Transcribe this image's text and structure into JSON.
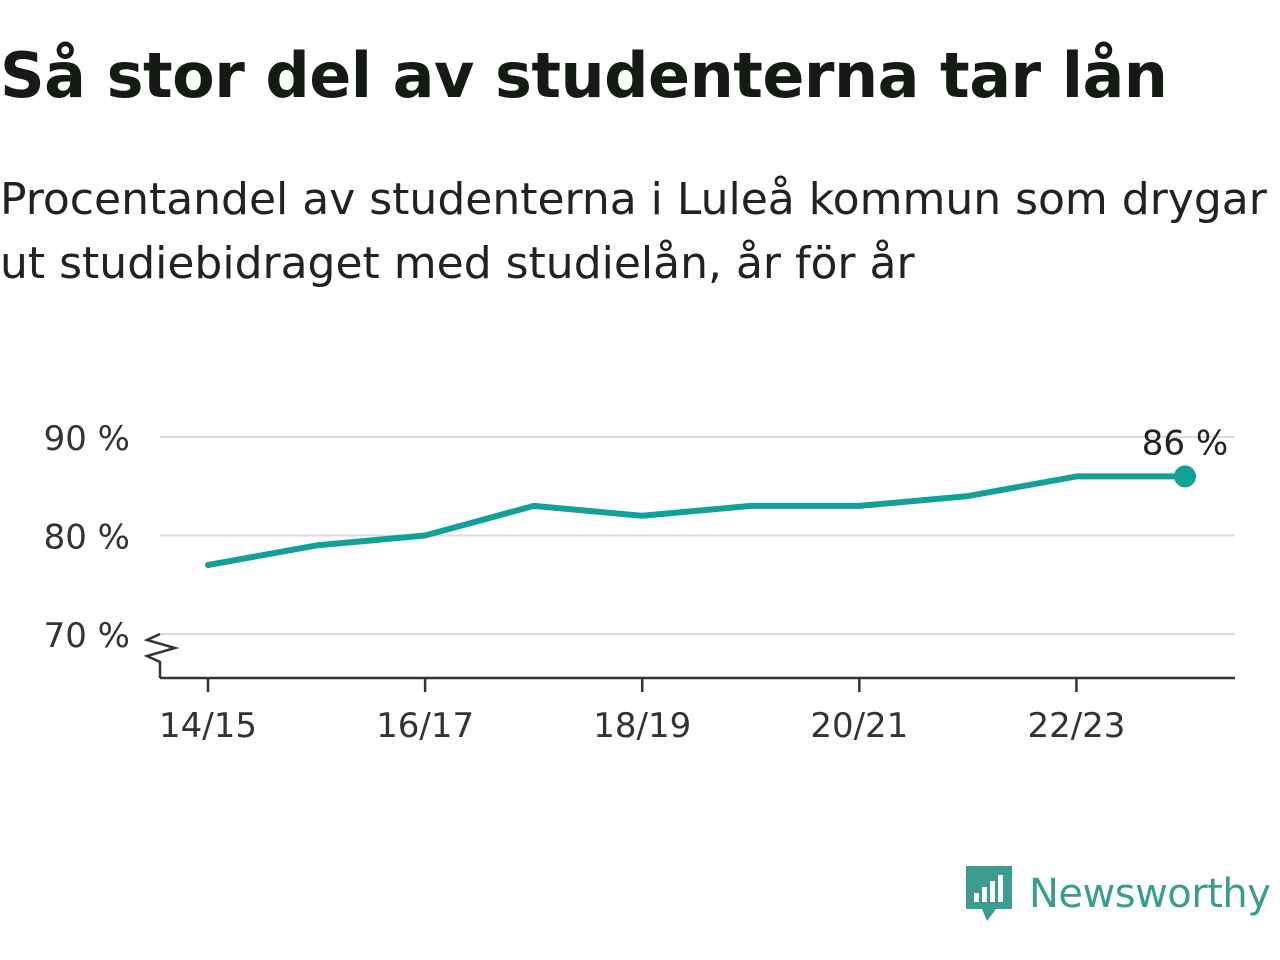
{
  "title": "Så stor del av studenterna tar lån",
  "subtitle": "Procentandel av studenterna i Luleå kommun som drygar ut studiebidraget med studielån, år för år",
  "brand": {
    "name": "Newsworthy",
    "logo_icon": "newsworthy-logo-icon",
    "color": "#3b9d8f"
  },
  "chart_data": {
    "type": "line",
    "title": "",
    "xlabel": "",
    "ylabel": "",
    "x": [
      "14/15",
      "15/16",
      "16/17",
      "17/18",
      "18/19",
      "19/20",
      "20/21",
      "21/22",
      "22/23",
      "23/24"
    ],
    "x_tick_labels": [
      "14/15",
      "16/17",
      "18/19",
      "20/21",
      "22/23"
    ],
    "y_ticks": [
      70,
      80,
      90
    ],
    "y_tick_labels": [
      "70 %",
      "80 %",
      "90 %"
    ],
    "ylim": [
      65,
      90
    ],
    "y_axis_break": true,
    "grid": true,
    "series": [
      {
        "values": [
          77,
          79,
          80,
          83,
          82,
          83,
          83,
          84,
          86,
          86
        ],
        "color": "#12a196"
      }
    ],
    "end_label": "86 %"
  }
}
